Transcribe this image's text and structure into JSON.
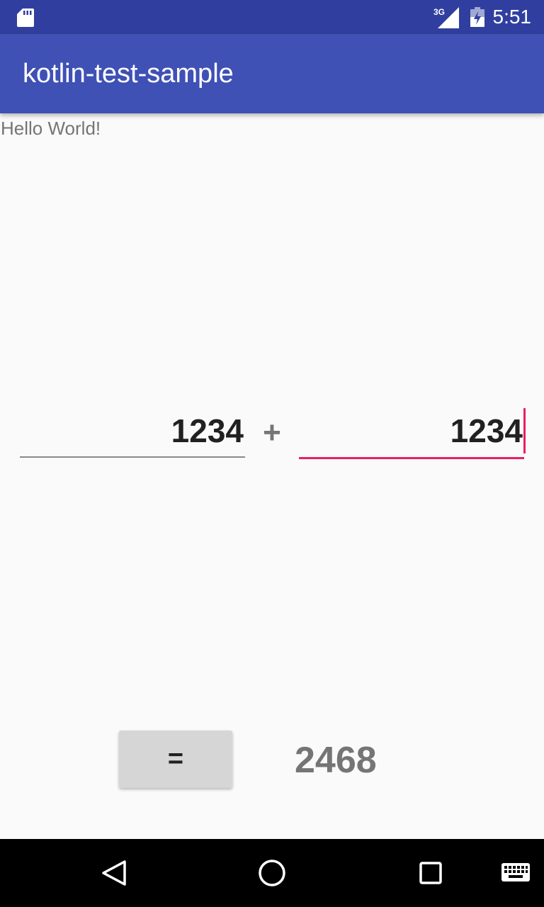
{
  "status_bar": {
    "network_type": "3G",
    "time": "5:51",
    "icons": {
      "sd_card": "sd-card-icon",
      "signal": "cellular-signal-icon",
      "battery": "battery-charging-icon"
    }
  },
  "app_bar": {
    "title": "kotlin-test-sample"
  },
  "content": {
    "hello_text": "Hello World!",
    "first_number": "1234",
    "operator": "+",
    "second_number": "1234",
    "equals_label": "=",
    "result": "2468"
  },
  "nav_bar": {
    "icons": [
      "back-icon",
      "home-icon",
      "recents-icon",
      "keyboard-icon"
    ]
  },
  "colors": {
    "status_bar": "#303f9f",
    "app_bar": "#3f51b5",
    "accent": "#e91e63",
    "background": "#fafafa"
  }
}
